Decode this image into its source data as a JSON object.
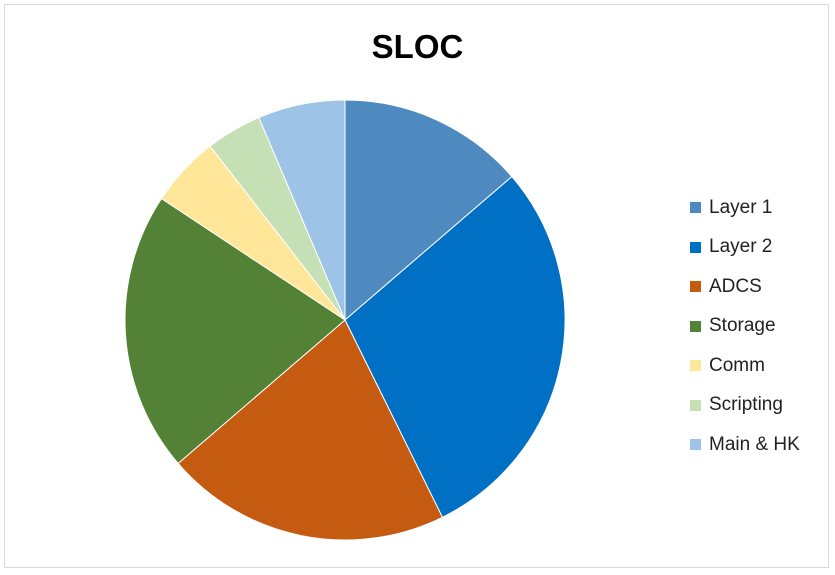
{
  "chart_data": {
    "type": "pie",
    "title": "SLOC",
    "legend_position": "right",
    "categories": [
      "Layer 1",
      "Layer 2",
      "ADCS",
      "Storage",
      "Comm",
      "Scripting",
      "Main & HK"
    ],
    "values": [
      13.7,
      29.0,
      21.0,
      20.6,
      5.2,
      4.1,
      6.4
    ],
    "colors": [
      "#4E8AC0",
      "#0070C4",
      "#C55A11",
      "#538135",
      "#FFE699",
      "#C5E0B4",
      "#9DC3E6"
    ]
  }
}
